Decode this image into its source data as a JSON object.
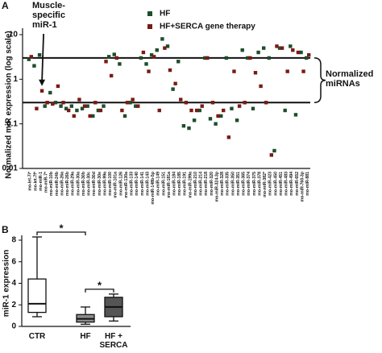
{
  "chart_data": [
    {
      "type": "scatter",
      "panel_label": "A",
      "y_label": "Normalized miR expression (log scale)",
      "log_scale": true,
      "ylim": [
        0.01,
        10
      ],
      "yticks": [
        10,
        1,
        0.1,
        0.01
      ],
      "reference_lines": [
        3,
        0.3
      ],
      "range_label": "Normalized miRNAs",
      "annotation": {
        "text": "Muscle-specific miR-1",
        "category": "mo-miR-1",
        "series": "HF+SERCA gene therapy"
      },
      "categories": [
        "mo-let-7i*",
        "mo-let-7f*",
        "mo-miR-1",
        "mo-miR-7*",
        "mo-miR-10b",
        "mo-miR-24b",
        "mo-miR-26a",
        "mo-miR-26b",
        "mo-miR-29a",
        "mo-miR-30a",
        "mo-miR-30b",
        "mo-miR-30c",
        "mo-miR-30d",
        "mo-miR-30e",
        "mo-miR-99a",
        "mo-miR-100",
        "mo-miR-101a",
        "mo-miR-126",
        "mo-miR-130a",
        "mo-miR-133",
        "mo-miR-140",
        "mo-miR-141",
        "mo-miR-143",
        "mo-miR-148b-5p",
        "mo-miR-149",
        "mo-miR-151",
        "mo-miR-181a",
        "mo-miR-184",
        "mo-miR-185",
        "mo-miR-191",
        "mo-miR-199a",
        "mo-miR-210",
        "mo-miR-214",
        "mo-miR-218",
        "mo-miR-320",
        "mo-miR-324-3p",
        "mo-miR-328",
        "mo-miR-335",
        "mo-miR-350",
        "mo-miR-351",
        "mo-miR-365",
        "mo-miR-374",
        "mo-miR-375",
        "mo-miR-378",
        "mo-miR-382*",
        "mo-miR-423",
        "mo-miR-450",
        "mo-miR-451",
        "mo-miR-483",
        "mo-miR-494",
        "mo-miR-652",
        "mo-miR-760-3p",
        "mo-miR-881"
      ],
      "series": [
        {
          "name": "HF",
          "color": "#1e4d2b",
          "values": [
            2.8,
            2.0,
            3.5,
            0.25,
            0.5,
            0.3,
            0.25,
            0.22,
            0.25,
            0.2,
            0.22,
            0.25,
            0.15,
            0.2,
            0.25,
            3.2,
            3.6,
            2.2,
            0.15,
            0.3,
            0.25,
            3.0,
            2.2,
            3.5,
            4.5,
            8.0,
            5.5,
            0.6,
            2.5,
            0.09,
            0.08,
            0.12,
            0.2,
            3.0,
            0.13,
            0.1,
            0.15,
            3.0,
            0.22,
            0.12,
            4.5,
            3.0,
            0.22,
            4.0,
            5.0,
            3.0,
            0.025,
            5.0,
            0.2,
            5.5,
            0.16,
            4.0,
            3.0
          ]
        },
        {
          "name": "HF+SERCA gene therapy",
          "color": "#7a1a14",
          "values": [
            3.2,
            0.22,
            0.55,
            0.3,
            0.28,
            0.7,
            0.3,
            0.2,
            0.15,
            0.35,
            0.25,
            0.15,
            0.3,
            0.2,
            2.5,
            1.2,
            3.0,
            0.2,
            0.3,
            0.35,
            0.25,
            4.0,
            1.5,
            3.2,
            0.2,
            5.0,
            1.6,
            0.8,
            0.35,
            0.3,
            0.2,
            0.2,
            0.25,
            3.0,
            0.3,
            0.15,
            0.2,
            0.05,
            1.5,
            0.25,
            0.3,
            3.0,
            1.4,
            0.7,
            0.3,
            0.02,
            5.5,
            5.0,
            1.5,
            4.5,
            4.0,
            1.5,
            3.5
          ]
        }
      ]
    },
    {
      "type": "box",
      "panel_label": "B",
      "y_label": "miR-1 expression",
      "ylim": [
        0,
        8
      ],
      "yticks": [
        0,
        2,
        4,
        6,
        8
      ],
      "categories": [
        "CTR",
        "HF",
        "HF + SERCA"
      ],
      "boxes": [
        {
          "min": 0.9,
          "q1": 1.3,
          "median": 2.1,
          "q3": 4.4,
          "max": 8.3,
          "color": "#ffffff"
        },
        {
          "min": 0.2,
          "q1": 0.4,
          "median": 0.7,
          "q3": 1.1,
          "max": 1.8,
          "color": "#8c8c8c"
        },
        {
          "min": 0.5,
          "q1": 0.9,
          "median": 1.8,
          "q3": 2.7,
          "max": 3.0,
          "color": "#555555"
        }
      ],
      "significance": [
        {
          "between": [
            "CTR",
            "HF"
          ],
          "label": "*"
        },
        {
          "between": [
            "HF",
            "HF + SERCA"
          ],
          "label": "*"
        }
      ]
    }
  ]
}
